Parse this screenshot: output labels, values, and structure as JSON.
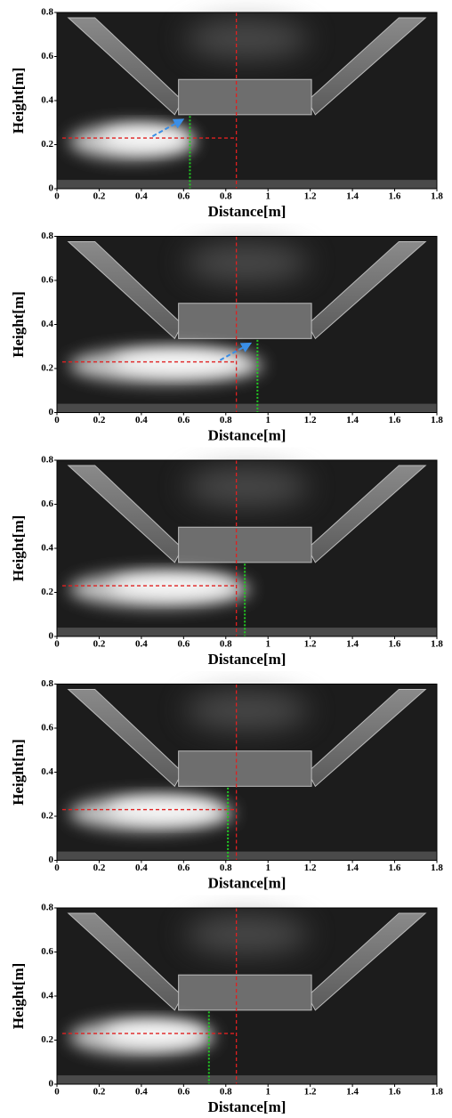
{
  "chart_data": [
    {
      "type": "image",
      "xlabel": "Distance[m]",
      "ylabel": "Height[m]",
      "xlim": [
        0,
        1.8
      ],
      "ylim": [
        0,
        0.8
      ],
      "xticks": [
        0,
        0.2,
        0.4,
        0.6,
        0.8,
        1,
        1.2,
        1.4,
        1.6,
        1.8
      ],
      "yticks": [
        0,
        0.2,
        0.4,
        0.6,
        0.8
      ],
      "vertical_reference": 0.85,
      "horizontal_reference": 0.23,
      "front_position": 0.63,
      "front_height": 0.33,
      "arrow": true
    },
    {
      "type": "image",
      "xlabel": "Distance[m]",
      "ylabel": "Height[m]",
      "xlim": [
        0,
        1.8
      ],
      "ylim": [
        0,
        0.8
      ],
      "xticks": [
        0,
        0.2,
        0.4,
        0.6,
        0.8,
        1,
        1.2,
        1.4,
        1.6,
        1.8
      ],
      "yticks": [
        0,
        0.2,
        0.4,
        0.6,
        0.8
      ],
      "vertical_reference": 0.85,
      "horizontal_reference": 0.23,
      "front_position": 0.95,
      "front_height": 0.33,
      "arrow": true
    },
    {
      "type": "image",
      "xlabel": "Distance[m]",
      "ylabel": "Height[m]",
      "xlim": [
        0,
        1.8
      ],
      "ylim": [
        0,
        0.8
      ],
      "xticks": [
        0,
        0.2,
        0.4,
        0.6,
        0.8,
        1,
        1.2,
        1.4,
        1.6,
        1.8
      ],
      "yticks": [
        0,
        0.2,
        0.4,
        0.6,
        0.8
      ],
      "vertical_reference": 0.85,
      "horizontal_reference": 0.23,
      "front_position": 0.89,
      "front_height": 0.33,
      "arrow": false
    },
    {
      "type": "image",
      "xlabel": "Distance[m]",
      "ylabel": "Height[m]",
      "xlim": [
        0,
        1.8
      ],
      "ylim": [
        0,
        0.8
      ],
      "xticks": [
        0,
        0.2,
        0.4,
        0.6,
        0.8,
        1,
        1.2,
        1.4,
        1.6,
        1.8
      ],
      "yticks": [
        0,
        0.2,
        0.4,
        0.6,
        0.8
      ],
      "vertical_reference": 0.85,
      "horizontal_reference": 0.23,
      "front_position": 0.81,
      "front_height": 0.33,
      "arrow": false
    },
    {
      "type": "image",
      "xlabel": "Distance[m]",
      "ylabel": "Height[m]",
      "xlim": [
        0,
        1.8
      ],
      "ylim": [
        0,
        0.8
      ],
      "xticks": [
        0,
        0.2,
        0.4,
        0.6,
        0.8,
        1,
        1.2,
        1.4,
        1.6,
        1.8
      ],
      "yticks": [
        0,
        0.2,
        0.4,
        0.6,
        0.8
      ],
      "vertical_reference": 0.85,
      "horizontal_reference": 0.23,
      "front_position": 0.72,
      "front_height": 0.33,
      "arrow": false
    }
  ]
}
